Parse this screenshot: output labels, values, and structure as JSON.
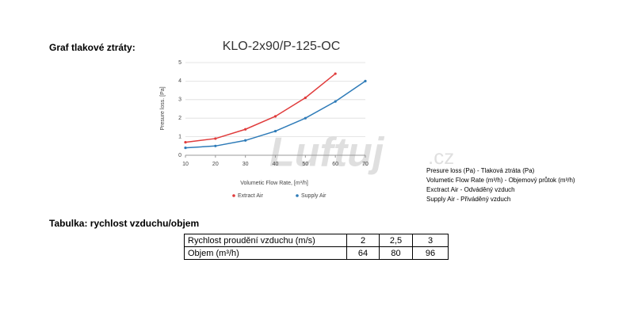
{
  "heading_graph": "Graf tlakové ztráty:",
  "chart_data": {
    "type": "line",
    "title": "KLO-2x90/P-125-OC",
    "x_label": "Volumetic Flow Rate, [m³/h]",
    "y_label": "Presure loss. [Pa]",
    "x": [
      10,
      20,
      30,
      40,
      50,
      60,
      70
    ],
    "series": [
      {
        "name": "Extract Air",
        "color": "#e03c3c",
        "values": [
          0.7,
          0.9,
          1.4,
          2.1,
          3.1,
          4.4,
          null
        ]
      },
      {
        "name": "Supply Air",
        "color": "#2e7bb8",
        "values": [
          0.4,
          0.5,
          0.8,
          1.3,
          2.0,
          2.9,
          4.0
        ]
      }
    ],
    "xlim": [
      10,
      70
    ],
    "xticks": [
      10,
      20,
      30,
      40,
      50,
      60,
      70
    ],
    "ylim": [
      0,
      5
    ],
    "yticks": [
      0,
      1,
      2,
      3,
      4,
      5
    ],
    "grid": true,
    "legend": "bottom"
  },
  "watermark": {
    "brand": "Luftuj",
    "domain": ".cz"
  },
  "notes": [
    "Presure loss (Pa) - Tlaková ztráta (Pa)",
    "Volumetic Flow Rate (m³/h) - Objemový průtok (m³/h)",
    "Exctract Air - Odváděný vzduch",
    "Supply Air - Přiváděný vzduch"
  ],
  "heading_table": "Tabulka: rychlost vzduchu/objem",
  "table": {
    "rows": [
      [
        "Rychlost proudění vzduchu (m/s)",
        "2",
        "2,5",
        "3"
      ],
      [
        "Objem (m³/h)",
        "64",
        "80",
        "96"
      ]
    ]
  }
}
